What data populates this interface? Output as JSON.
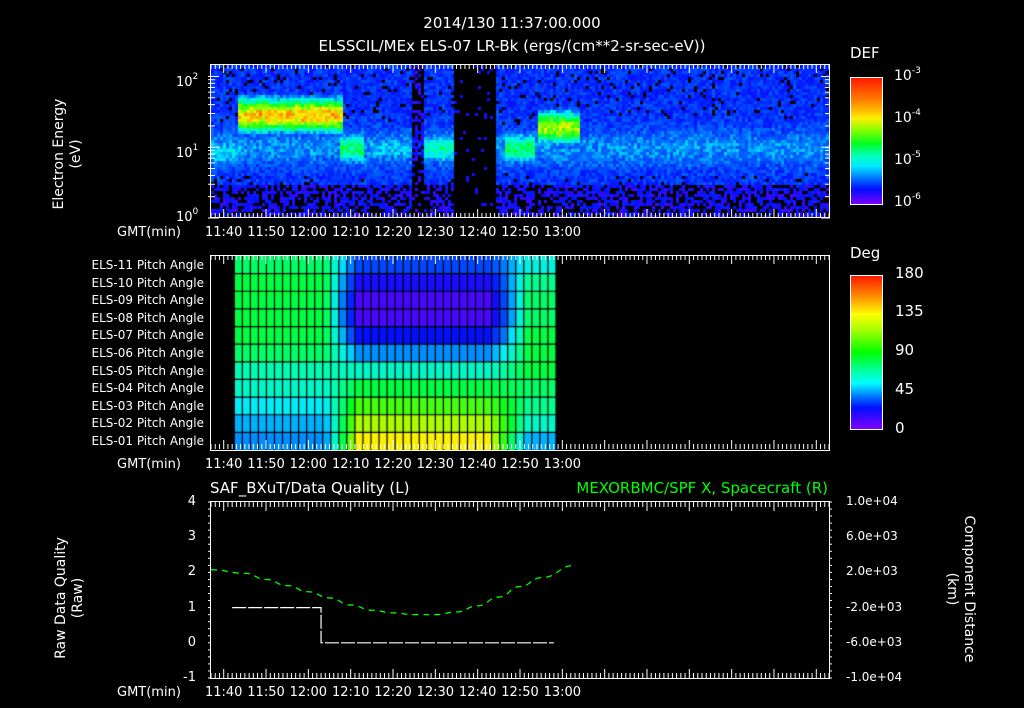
{
  "header": {
    "time": "2014/130 11:37:00.000",
    "title": "ELSSCIL/MEx ELS-07 LR-Bk  (ergs/(cm**2-sr-sec-eV))"
  },
  "xaxis": {
    "label": "GMT(min)",
    "ticks": [
      "11:40",
      "11:50",
      "12:00",
      "12:10",
      "12:20",
      "12:30",
      "12:40",
      "12:50",
      "13:00"
    ]
  },
  "panel1": {
    "ylabel_line1": "Electron Energy",
    "ylabel_line2": "(eV)",
    "yticks": [
      {
        "base": "10",
        "exp": "2"
      },
      {
        "base": "10",
        "exp": "1"
      },
      {
        "base": "10",
        "exp": "0"
      }
    ],
    "colorbar": {
      "label": "DEF",
      "ticks": [
        {
          "base": "10",
          "exp": "-3"
        },
        {
          "base": "10",
          "exp": "-4"
        },
        {
          "base": "10",
          "exp": "-5"
        },
        {
          "base": "10",
          "exp": "-6"
        }
      ]
    }
  },
  "panel2": {
    "rows": [
      "ELS-11 Pitch Angle",
      "ELS-10 Pitch Angle",
      "ELS-09 Pitch Angle",
      "ELS-08 Pitch Angle",
      "ELS-07 Pitch Angle",
      "ELS-06 Pitch Angle",
      "ELS-05 Pitch Angle",
      "ELS-04 Pitch Angle",
      "ELS-03 Pitch Angle",
      "ELS-02 Pitch Angle",
      "ELS-01 Pitch Angle"
    ],
    "colorbar": {
      "label": "Deg",
      "ticks": [
        "180",
        "135",
        "90",
        "45",
        "0"
      ]
    }
  },
  "panel3": {
    "title_left": "SAF_BXuT/Data Quality (L)",
    "title_right": "MEXORBMC/SPF X, Spacecraft (R)",
    "title_right_color": "#00ff00",
    "ylabel_left_line1": "Raw Data Quality",
    "ylabel_left_line2": "(Raw)",
    "yticks_left": [
      "4",
      "3",
      "2",
      "1",
      "0",
      "-1"
    ],
    "ylabel_right_line1": "Component Distance",
    "ylabel_right_line2": "(km)",
    "yticks_right": [
      "1.0e+04",
      "6.0e+03",
      "2.0e+03",
      "-2.0e+03",
      "-6.0e+03",
      "-1.0e+04"
    ]
  },
  "chart_data": [
    {
      "type": "heatmap",
      "title": "ELSSCIL/MEx ELS-07 LR-Bk (ergs/(cm**2-sr-sec-eV))",
      "xlabel": "GMT(min)",
      "ylabel": "Electron Energy (eV)",
      "yscale": "log",
      "ylim": [
        1,
        150
      ],
      "xlim": [
        "11:37",
        "13:03"
      ],
      "colorbar": {
        "label": "DEF",
        "scale": "log",
        "range": [
          1e-06,
          0.001
        ]
      },
      "features": [
        {
          "time_range": [
            "11:44",
            "12:07"
          ],
          "energy_peak_eV": 30,
          "max_DEF": 0.0005
        },
        {
          "time_range": [
            "12:08",
            "12:12"
          ],
          "energy_peak_eV": 10,
          "max_DEF": 5e-05
        },
        {
          "time_range": [
            "12:25",
            "12:33"
          ],
          "energy_peak_eV": 10,
          "max_DEF": 3e-05
        },
        {
          "time_range": [
            "12:34",
            "12:44"
          ],
          "note": "data gap / very low flux"
        },
        {
          "time_range": [
            "12:47",
            "12:52"
          ],
          "energy_peak_eV": 10,
          "max_DEF": 5e-05
        },
        {
          "time_range": [
            "12:55",
            "13:03"
          ],
          "energy_peak_eV": 20,
          "max_DEF": 0.0002
        }
      ]
    },
    {
      "type": "heatmap",
      "title": "Pitch Angle",
      "xlabel": "GMT(min)",
      "rows": [
        "ELS-11",
        "ELS-10",
        "ELS-09",
        "ELS-08",
        "ELS-07",
        "ELS-06",
        "ELS-05",
        "ELS-04",
        "ELS-03",
        "ELS-02",
        "ELS-01"
      ],
      "xlim": [
        "11:37",
        "13:03"
      ],
      "data_time_range": [
        "11:42",
        "12:58"
      ],
      "colorbar": {
        "label": "Deg",
        "range": [
          0,
          180
        ]
      },
      "summary": {
        "before_12:04": {
          "ELS-11": 95,
          "ELS-10": 100,
          "ELS-09": 100,
          "ELS-08": 100,
          "ELS-07": 100,
          "ELS-06": 95,
          "ELS-05": 85,
          "ELS-04": 80,
          "ELS-03": 70,
          "ELS-02": 60,
          "ELS-01": 55
        },
        "12:15-12:40": {
          "ELS-11": 40,
          "ELS-10": 20,
          "ELS-09": 10,
          "ELS-08": 10,
          "ELS-07": 25,
          "ELS-06": 55,
          "ELS-05": 80,
          "ELS-04": 100,
          "ELS-03": 115,
          "ELS-02": 130,
          "ELS-01": 140
        },
        "after_12:50": {
          "ELS-11": 75,
          "ELS-10": 90,
          "ELS-09": 95,
          "ELS-08": 95,
          "ELS-07": 100,
          "ELS-06": 100,
          "ELS-05": 100,
          "ELS-04": 95,
          "ELS-03": 90,
          "ELS-02": 80,
          "ELS-01": 60
        }
      }
    },
    {
      "type": "line",
      "title": "SAF_BXuT/Data Quality (L) ; MEXORBMC/SPF X, Spacecraft (R)",
      "xlabel": "GMT(min)",
      "ylabel": "Raw Data Quality (Raw)",
      "ylabel_right": "Component Distance (km)",
      "ylim": [
        -1,
        4
      ],
      "ylim_right": [
        -10000,
        10000
      ],
      "series": [
        {
          "name": "Data Quality (L)",
          "color": "#ffffff",
          "axis": "left",
          "x": [
            "11:42",
            "12:03",
            "12:03",
            "12:58"
          ],
          "y": [
            1,
            1,
            0,
            0
          ]
        },
        {
          "name": "SPF X Spacecraft (R)",
          "color": "#00ff00",
          "axis": "right",
          "style": "dashed",
          "x": [
            "11:37",
            "11:45",
            "11:50",
            "11:55",
            "12:00",
            "12:05",
            "12:10",
            "12:15",
            "12:20",
            "12:25",
            "12:30",
            "12:35",
            "12:40",
            "12:45",
            "12:50",
            "12:55",
            "13:03"
          ],
          "y": [
            2300,
            1900,
            1200,
            500,
            -200,
            -900,
            -1700,
            -2300,
            -2600,
            -2800,
            -2800,
            -2500,
            -1800,
            -800,
            400,
            1400,
            2800
          ]
        }
      ]
    }
  ]
}
